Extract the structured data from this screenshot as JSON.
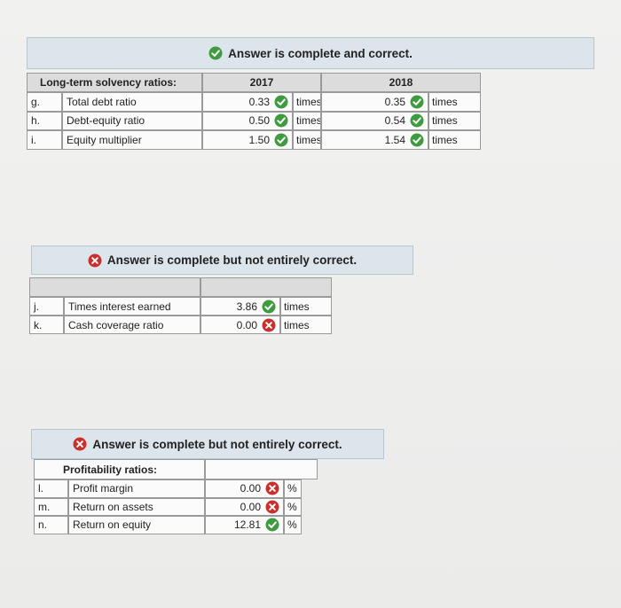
{
  "sections": [
    {
      "banner": "Answer is complete and correct.",
      "banner_status": "correct",
      "header": {
        "label": "Long-term solvency ratios:",
        "columns": [
          "2017",
          "2018"
        ]
      },
      "rows": [
        {
          "letter": "g.",
          "label": "Total debt ratio",
          "cells": [
            {
              "value": "0.33",
              "status": "correct",
              "unit": "times"
            },
            {
              "value": "0.35",
              "status": "correct",
              "unit": "times"
            }
          ]
        },
        {
          "letter": "h.",
          "label": "Debt-equity ratio",
          "cells": [
            {
              "value": "0.50",
              "status": "correct",
              "unit": "times"
            },
            {
              "value": "0.54",
              "status": "correct",
              "unit": "times"
            }
          ]
        },
        {
          "letter": "i.",
          "label": "Equity multiplier",
          "cells": [
            {
              "value": "1.50",
              "status": "correct",
              "unit": "times"
            },
            {
              "value": "1.54",
              "status": "correct",
              "unit": "times"
            }
          ]
        }
      ]
    },
    {
      "banner": "Answer is complete but not entirely correct.",
      "banner_status": "incorrect",
      "rows": [
        {
          "letter": "j.",
          "label": "Times interest earned",
          "cells": [
            {
              "value": "3.86",
              "status": "correct",
              "unit": "times"
            }
          ]
        },
        {
          "letter": "k.",
          "label": "Cash coverage ratio",
          "cells": [
            {
              "value": "0.00",
              "status": "incorrect",
              "unit": "times"
            }
          ]
        }
      ]
    },
    {
      "banner": "Answer is complete but not entirely correct.",
      "banner_status": "incorrect",
      "header": {
        "label": "Profitability ratios:"
      },
      "rows": [
        {
          "letter": "l.",
          "label": "Profit margin",
          "cells": [
            {
              "value": "0.00",
              "status": "incorrect",
              "unit": "%"
            }
          ]
        },
        {
          "letter": "m.",
          "label": "Return on assets",
          "cells": [
            {
              "value": "0.00",
              "status": "incorrect",
              "unit": "%"
            }
          ]
        },
        {
          "letter": "n.",
          "label": "Return on equity",
          "cells": [
            {
              "value": "12.81",
              "status": "correct",
              "unit": "%"
            }
          ]
        }
      ]
    }
  ]
}
